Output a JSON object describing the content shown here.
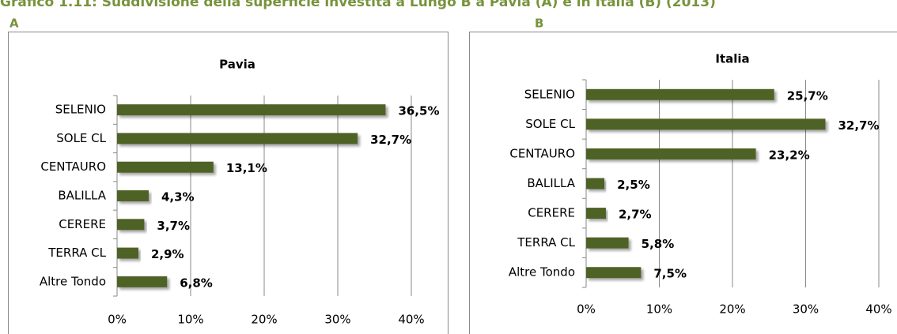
{
  "title": "Grafico 1.11: Suddivisione della superficie investita a Lungo B a Pavia (A) e in Italia (B) (2013)",
  "chart_data": [
    {
      "type": "bar",
      "orientation": "horizontal",
      "label": "A",
      "title": "Pavia",
      "categories": [
        "SELENIO",
        "SOLE CL",
        "CENTAURO",
        "BALILLA",
        "CERERE",
        "TERRA CL",
        "Altre Tondo"
      ],
      "values": [
        36.5,
        32.7,
        13.1,
        4.3,
        3.7,
        2.9,
        6.8
      ],
      "value_labels": [
        "36,5%",
        "32,7%",
        "13,1%",
        "4,3%",
        "3,7%",
        "2,9%",
        "6,8%"
      ],
      "color": "#4f6228",
      "xlim": [
        0,
        40
      ],
      "xticks": [
        {
          "value": 0,
          "label": "0%"
        },
        {
          "value": 10,
          "label": "10%"
        },
        {
          "value": 20,
          "label": "20%"
        },
        {
          "value": 30,
          "label": "30%"
        },
        {
          "value": 40,
          "label": "40%"
        }
      ],
      "grid": true
    },
    {
      "type": "bar",
      "orientation": "horizontal",
      "label": "B",
      "title": "Italia",
      "categories": [
        "SELENIO",
        "SOLE CL",
        "CENTAURO",
        "BALILLA",
        "CERERE",
        "TERRA CL",
        "Altre Tondo"
      ],
      "values": [
        25.7,
        32.7,
        23.2,
        2.5,
        2.7,
        5.8,
        7.5
      ],
      "value_labels": [
        "25,7%",
        "32,7%",
        "23,2%",
        "2,5%",
        "2,7%",
        "5,8%",
        "7,5%"
      ],
      "color": "#4f6228",
      "xlim": [
        0,
        40
      ],
      "xticks": [
        {
          "value": 0,
          "label": "0%"
        },
        {
          "value": 10,
          "label": "10%"
        },
        {
          "value": 20,
          "label": "20%"
        },
        {
          "value": 30,
          "label": "30%"
        },
        {
          "value": 40,
          "label": "40%"
        }
      ],
      "grid": true
    }
  ]
}
